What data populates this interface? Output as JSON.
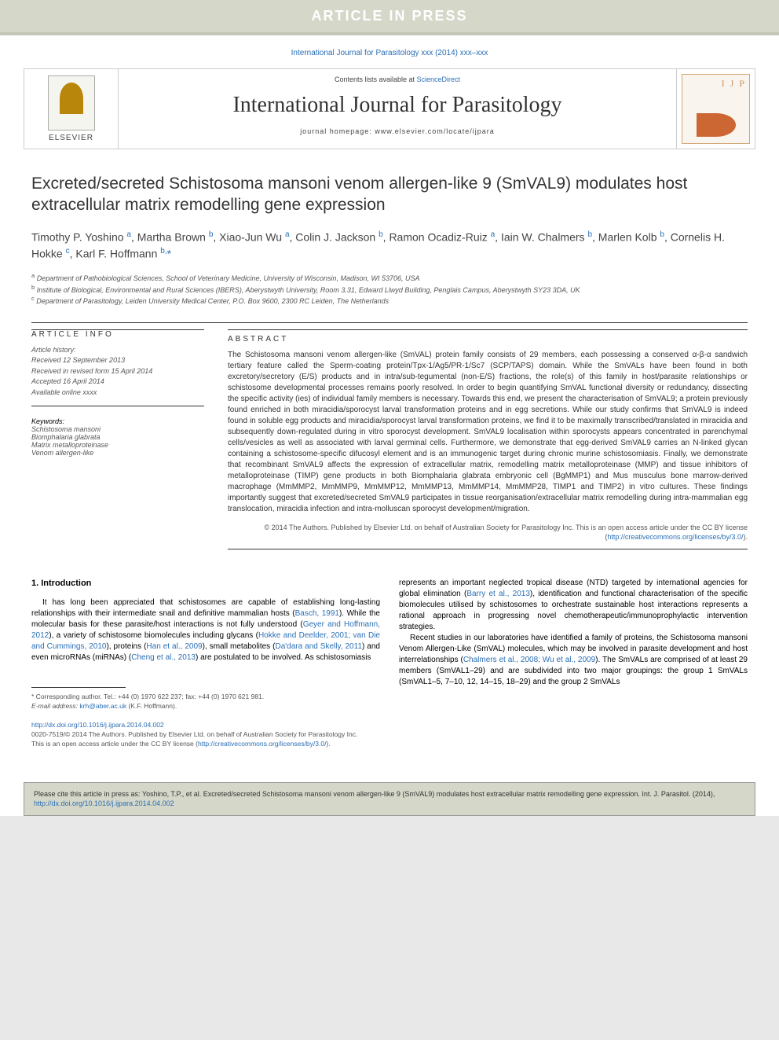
{
  "banner": {
    "text": "ARTICLE IN PRESS"
  },
  "citation": {
    "text": "International Journal for Parasitology xxx (2014) xxx–xxx"
  },
  "masthead": {
    "elsevier": "ELSEVIER",
    "contents_prefix": "Contents lists available at ",
    "contents_link": "ScienceDirect",
    "journal_title": "International Journal for Parasitology",
    "homepage_prefix": "journal homepage: ",
    "homepage": "www.elsevier.com/locate/ijpara",
    "ijp_label": "I J P"
  },
  "article": {
    "title": "Excreted/secreted Schistosoma mansoni venom allergen-like 9 (SmVAL9) modulates host extracellular matrix remodelling gene expression",
    "authors_html": "Timothy P. Yoshino <sup>a</sup>, Martha Brown <sup>b</sup>, Xiao-Jun Wu <sup>a</sup>, Colin J. Jackson <sup>b</sup>, Ramon Ocadiz-Ruiz <sup>a</sup>, Iain W. Chalmers <sup>b</sup>, Marlen Kolb <sup>b</sup>, Cornelis H. Hokke <sup>c</sup>, Karl F. Hoffmann <sup>b,</sup><a href='#'>*</a>",
    "affiliations": [
      "a Department of Pathobiological Sciences, School of Veterinary Medicine, University of Wisconsin, Madison, WI 53706, USA",
      "b Institute of Biological, Environmental and Rural Sciences (IBERS), Aberystwyth University, Room 3.31, Edward Llwyd Building, Penglais Campus, Aberystwyth SY23 3DA, UK",
      "c Department of Parasitology, Leiden University Medical Center, P.O. Box 9600, 2300 RC Leiden, The Netherlands"
    ]
  },
  "info": {
    "heading": "ARTICLE INFO",
    "history_label": "Article history:",
    "history": [
      "Received 12 September 2013",
      "Received in revised form 15 April 2014",
      "Accepted 16 April 2014",
      "Available online xxxx"
    ],
    "keywords_label": "Keywords:",
    "keywords": [
      "Schistosoma mansoni",
      "Biomphalaria glabrata",
      "Matrix metalloproteinase",
      "Venom allergen-like"
    ]
  },
  "abstract": {
    "heading": "ABSTRACT",
    "text": "The Schistosoma mansoni venom allergen-like (SmVAL) protein family consists of 29 members, each possessing a conserved α-β-α sandwich tertiary feature called the Sperm-coating protein/Tpx-1/Ag5/PR-1/Sc7 (SCP/TAPS) domain. While the SmVALs have been found in both excretory/secretory (E/S) products and in intra/sub-tegumental (non-E/S) fractions, the role(s) of this family in host/parasite relationships or schistosome developmental processes remains poorly resolved. In order to begin quantifying SmVAL functional diversity or redundancy, dissecting the specific activity (ies) of individual family members is necessary. Towards this end, we present the characterisation of SmVAL9; a protein previously found enriched in both miracidia/sporocyst larval transformation proteins and in egg secretions. While our study confirms that SmVAL9 is indeed found in soluble egg products and miracidia/sporocyst larval transformation proteins, we find it to be maximally transcribed/translated in miracidia and subsequently down-regulated during in vitro sporocyst development. SmVAL9 localisation within sporocysts appears concentrated in parenchymal cells/vesicles as well as associated with larval germinal cells. Furthermore, we demonstrate that egg-derived SmVAL9 carries an N-linked glycan containing a schistosome-specific difucosyl element and is an immunogenic target during chronic murine schistosomiasis. Finally, we demonstrate that recombinant SmVAL9 affects the expression of extracellular matrix, remodelling matrix metalloproteinase (MMP) and tissue inhibitors of metalloproteinase (TIMP) gene products in both Biomphalaria glabrata embryonic cell (BgMMP1) and Mus musculus bone marrow-derived macrophage (MmMMP2, MmMMP9, MmMMP12, MmMMP13, MmMMP14, MmMMP28, TIMP1 and TIMP2) in vitro cultures. These findings importantly suggest that excreted/secreted SmVAL9 participates in tissue reorganisation/extracellular matrix remodelling during intra-mammalian egg translocation, miracidia infection and intra-molluscan sporocyst development/migration.",
    "copyright": "© 2014 The Authors. Published by Elsevier Ltd. on behalf of Australian Society for Parasitology Inc. This is an open access article under the CC BY license (",
    "license_link": "http://creativecommons.org/licenses/by/3.0/",
    "copyright_close": ")."
  },
  "body": {
    "heading": "1. Introduction",
    "col1_p1_a": "It has long been appreciated that schistosomes are capable of establishing long-lasting relationships with their intermediate snail and definitive mammalian hosts (",
    "col1_p1_link1": "Basch, 1991",
    "col1_p1_b": "). While the molecular basis for these parasite/host interactions is not fully understood (",
    "col1_p1_link2": "Geyer and Hoffmann, 2012",
    "col1_p1_c": "), a variety of schistosome biomolecules including glycans (",
    "col1_p1_link3": "Hokke and Deelder, 2001; van Die and Cummings, 2010",
    "col1_p1_d": "), proteins (",
    "col1_p1_link4": "Han et al., 2009",
    "col1_p1_e": "), small metabolites (",
    "col1_p1_link5": "Da'dara and Skelly, 2011",
    "col1_p1_f": ") and even microRNAs (miRNAs) (",
    "col1_p1_link6": "Cheng et al., 2013",
    "col1_p1_g": ") are postulated to be involved. As schistosomiasis",
    "col2_p1_a": "represents an important neglected tropical disease (NTD) targeted by international agencies for global elimination (",
    "col2_p1_link1": "Barry et al., 2013",
    "col2_p1_b": "), identification and functional characterisation of the specific biomolecules utilised by schistosomes to orchestrate sustainable host interactions represents a rational approach in progressing novel chemotherapeutic/immunoprophylactic intervention strategies.",
    "col2_p2_a": "Recent studies in our laboratories have identified a family of proteins, the Schistosoma mansoni Venom Allergen-Like (SmVAL) molecules, which may be involved in parasite development and host interrelationships (",
    "col2_p2_link1": "Chalmers et al., 2008; Wu et al., 2009",
    "col2_p2_b": "). The SmVALs are comprised of at least 29 members (SmVAL1–29) and are subdivided into two major groupings: the group 1 SmVALs (SmVAL1–5, 7–10, 12, 14–15, 18–29) and the group 2 SmVALs"
  },
  "footnotes": {
    "corr_symbol": "*",
    "corr_text": " Corresponding author. Tel.: +44 (0) 1970 622 237; fax: +44 (0) 1970 621 981.",
    "email_label": "E-mail address: ",
    "email": "krh@aber.ac.uk",
    "email_suffix": " (K.F. Hoffmann)."
  },
  "footer": {
    "doi": "http://dx.doi.org/10.1016/j.ijpara.2014.04.002",
    "issn_line": "0020-7519/© 2014 The Authors. Published by Elsevier Ltd. on behalf of Australian Society for Parasitology Inc.",
    "license_line": "This is an open access article under the CC BY license (",
    "license_link": "http://creativecommons.org/licenses/by/3.0/",
    "license_close": ")."
  },
  "citebox": {
    "text_a": "Please cite this article in press as: Yoshino, T.P., et al. Excreted/secreted Schistosoma mansoni venom allergen-like 9 (SmVAL9) modulates host extracellular matrix remodelling gene expression. Int. J. Parasitol. (2014), ",
    "link": "http://dx.doi.org/10.1016/j.ijpara.2014.04.002"
  }
}
